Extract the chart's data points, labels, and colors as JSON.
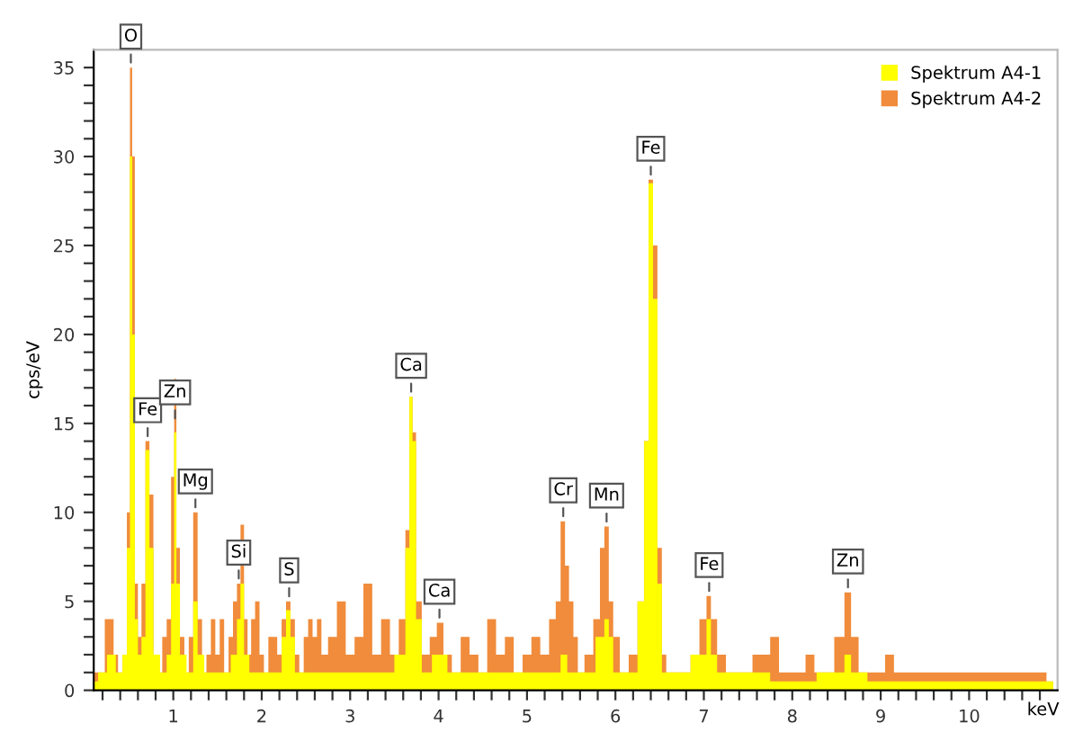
{
  "chart_data": {
    "type": "area",
    "xlabel": "keV",
    "ylabel": "cps/eV",
    "xlim": [
      0.1,
      11.0
    ],
    "ylim": [
      0,
      36
    ],
    "xticks": [
      {
        "value": 0.2,
        "label": null
      },
      {
        "value": 0.4,
        "label": null
      },
      {
        "value": 0.6,
        "label": null
      },
      {
        "value": 0.8,
        "label": null
      },
      1,
      {
        "value": 1.2,
        "label": null
      },
      {
        "value": 1.4,
        "label": null
      },
      {
        "value": 1.6,
        "label": null
      },
      {
        "value": 1.8,
        "label": null
      },
      2,
      {
        "value": 2.2,
        "label": null
      },
      {
        "value": 2.4,
        "label": null
      },
      {
        "value": 2.6,
        "label": null
      },
      {
        "value": 2.8,
        "label": null
      },
      3,
      {
        "value": 3.2,
        "label": null
      },
      {
        "value": 3.4,
        "label": null
      },
      {
        "value": 3.6,
        "label": null
      },
      {
        "value": 3.8,
        "label": null
      },
      4,
      {
        "value": 4.2,
        "label": null
      },
      {
        "value": 4.4,
        "label": null
      },
      {
        "value": 4.6,
        "label": null
      },
      {
        "value": 4.8,
        "label": null
      },
      5,
      {
        "value": 5.2,
        "label": null
      },
      {
        "value": 5.4,
        "label": null
      },
      {
        "value": 5.6,
        "label": null
      },
      {
        "value": 5.8,
        "label": null
      },
      6,
      {
        "value": 6.2,
        "label": null
      },
      {
        "value": 6.4,
        "label": null
      },
      {
        "value": 6.6,
        "label": null
      },
      {
        "value": 6.8,
        "label": null
      },
      7,
      {
        "value": 7.2,
        "label": null
      },
      {
        "value": 7.4,
        "label": null
      },
      {
        "value": 7.6,
        "label": null
      },
      {
        "value": 7.8,
        "label": null
      },
      8,
      {
        "value": 8.2,
        "label": null
      },
      {
        "value": 8.4,
        "label": null
      },
      {
        "value": 8.6,
        "label": null
      },
      {
        "value": 8.8,
        "label": null
      },
      9,
      {
        "value": 9.2,
        "label": null
      },
      {
        "value": 9.4,
        "label": null
      },
      {
        "value": 9.6,
        "label": null
      },
      {
        "value": 9.8,
        "label": null
      },
      10,
      {
        "value": 10.2,
        "label": null
      },
      {
        "value": 10.4,
        "label": null
      },
      {
        "value": 10.6,
        "label": null
      },
      {
        "value": 10.8,
        "label": null
      }
    ],
    "yticks": [
      0,
      {
        "value": 1,
        "label": null
      },
      {
        "value": 2,
        "label": null
      },
      {
        "value": 3,
        "label": null
      },
      {
        "value": 4,
        "label": null
      },
      5,
      {
        "value": 6,
        "label": null
      },
      {
        "value": 7,
        "label": null
      },
      {
        "value": 8,
        "label": null
      },
      {
        "value": 9,
        "label": null
      },
      10,
      {
        "value": 11,
        "label": null
      },
      {
        "value": 12,
        "label": null
      },
      {
        "value": 13,
        "label": null
      },
      {
        "value": 14,
        "label": null
      },
      15,
      {
        "value": 16,
        "label": null
      },
      {
        "value": 17,
        "label": null
      },
      {
        "value": 18,
        "label": null
      },
      {
        "value": 19,
        "label": null
      },
      20,
      {
        "value": 21,
        "label": null
      },
      {
        "value": 22,
        "label": null
      },
      {
        "value": 23,
        "label": null
      },
      {
        "value": 24,
        "label": null
      },
      25,
      {
        "value": 26,
        "label": null
      },
      {
        "value": 27,
        "label": null
      },
      {
        "value": 28,
        "label": null
      },
      {
        "value": 29,
        "label": null
      },
      30,
      {
        "value": 31,
        "label": null
      },
      {
        "value": 32,
        "label": null
      },
      {
        "value": 33,
        "label": null
      },
      {
        "value": 34,
        "label": null
      },
      35
    ],
    "grid": false,
    "legend": "top right",
    "series": [
      {
        "name": "Spektrum A4-1",
        "color": "#ffff00",
        "x": [
          0.1,
          0.2,
          0.3,
          0.4,
          0.45,
          0.5,
          0.52,
          0.55,
          0.58,
          0.62,
          0.66,
          0.71,
          0.75,
          0.8,
          0.9,
          0.95,
          1.0,
          1.02,
          1.05,
          1.1,
          1.2,
          1.25,
          1.3,
          1.4,
          1.5,
          1.6,
          1.7,
          1.74,
          1.78,
          1.82,
          1.9,
          2.0,
          2.1,
          2.2,
          2.25,
          2.3,
          2.35,
          2.4,
          2.6,
          2.8,
          3.0,
          3.2,
          3.4,
          3.6,
          3.65,
          3.69,
          3.72,
          3.77,
          3.85,
          4.0,
          4.2,
          4.5,
          4.8,
          5.0,
          5.2,
          5.35,
          5.41,
          5.5,
          5.7,
          5.85,
          5.9,
          5.95,
          6.0,
          6.2,
          6.3,
          6.35,
          6.4,
          6.45,
          6.5,
          6.55,
          6.7,
          7.0,
          7.06,
          7.1,
          7.2,
          7.5,
          8.0,
          8.55,
          8.63,
          8.7,
          9.0,
          10.0,
          10.95
        ],
        "values": [
          0.5,
          1,
          2,
          1,
          2,
          8,
          30,
          20,
          4,
          2,
          3,
          13.5,
          8,
          2,
          1,
          2,
          6,
          14.5,
          6,
          2,
          1,
          5,
          2,
          1,
          1,
          1,
          2,
          4,
          6,
          2,
          1,
          1,
          1,
          1,
          3,
          4.5,
          3,
          1,
          1,
          1,
          1,
          1,
          1,
          2,
          8,
          16.5,
          14,
          4,
          1,
          2,
          1,
          1,
          1,
          1,
          1,
          1,
          2,
          1,
          1,
          3,
          4,
          3,
          1,
          1,
          5,
          14,
          28.5,
          22,
          6,
          1,
          1,
          2,
          4,
          2,
          1,
          1,
          0.5,
          1,
          2,
          1,
          0.5,
          0.5,
          0.5
        ]
      },
      {
        "name": "Spektrum A4-2",
        "color": "#f08c3c",
        "x": [
          0.1,
          0.2,
          0.25,
          0.3,
          0.35,
          0.4,
          0.45,
          0.5,
          0.52,
          0.55,
          0.58,
          0.62,
          0.66,
          0.71,
          0.75,
          0.8,
          0.85,
          0.9,
          0.95,
          1.0,
          1.02,
          1.05,
          1.1,
          1.15,
          1.2,
          1.25,
          1.3,
          1.35,
          1.4,
          1.45,
          1.5,
          1.55,
          1.6,
          1.65,
          1.7,
          1.74,
          1.78,
          1.82,
          1.86,
          1.9,
          1.95,
          2.0,
          2.05,
          2.1,
          2.15,
          2.2,
          2.25,
          2.3,
          2.35,
          2.4,
          2.45,
          2.5,
          2.55,
          2.6,
          2.65,
          2.7,
          2.8,
          2.9,
          3.0,
          3.1,
          3.2,
          3.3,
          3.4,
          3.5,
          3.6,
          3.65,
          3.69,
          3.72,
          3.77,
          3.85,
          3.95,
          4.01,
          4.1,
          4.2,
          4.3,
          4.4,
          4.5,
          4.6,
          4.7,
          4.8,
          4.9,
          5.0,
          5.1,
          5.2,
          5.3,
          5.35,
          5.41,
          5.45,
          5.5,
          5.55,
          5.6,
          5.7,
          5.8,
          5.85,
          5.9,
          5.95,
          6.0,
          6.1,
          6.2,
          6.3,
          6.35,
          6.4,
          6.45,
          6.5,
          6.55,
          6.6,
          6.7,
          6.8,
          6.9,
          7.0,
          7.06,
          7.1,
          7.2,
          7.3,
          7.5,
          7.6,
          7.7,
          7.8,
          7.9,
          8.0,
          8.1,
          8.2,
          8.3,
          8.4,
          8.55,
          8.63,
          8.7,
          8.8,
          8.9,
          9.0,
          9.1,
          9.2,
          9.4,
          9.6,
          9.8,
          10.0,
          10.2,
          10.4,
          10.6,
          10.8,
          10.95
        ],
        "values": [
          1,
          1,
          4,
          4,
          2,
          1,
          2,
          10,
          35,
          30,
          6,
          3,
          6,
          14,
          11,
          2,
          1,
          3,
          4,
          12,
          17.5,
          8,
          3,
          1,
          3,
          10,
          4,
          1,
          2,
          4,
          2,
          4,
          1,
          3,
          5,
          6,
          9.3,
          4,
          2,
          4,
          5,
          2,
          1,
          3,
          3,
          2,
          4,
          5,
          4,
          2,
          1,
          3,
          4,
          3,
          4,
          2,
          3,
          5,
          2,
          3,
          6,
          2,
          4,
          2,
          4,
          9,
          16.5,
          14.5,
          5,
          2,
          3,
          3.8,
          2,
          1,
          3,
          2,
          1,
          4,
          2,
          3,
          1,
          2,
          3,
          2,
          4,
          5,
          9.5,
          7,
          5,
          3,
          1,
          2,
          4,
          8,
          9.2,
          5,
          3,
          1,
          2,
          5,
          14,
          28.7,
          25,
          8,
          2,
          1,
          1,
          1,
          2,
          4,
          5.3,
          4,
          2,
          1,
          1,
          2,
          2,
          3,
          1,
          1,
          1,
          2,
          1,
          1,
          3,
          5.5,
          3,
          1,
          1,
          1,
          2,
          1,
          1,
          1,
          1,
          1,
          1,
          1,
          1,
          1,
          0.5
        ]
      }
    ],
    "annotations": [
      {
        "text": "O",
        "x": 0.52,
        "y": 35
      },
      {
        "text": "Fe",
        "x": 0.71,
        "y": 14
      },
      {
        "text": "Zn",
        "x": 1.02,
        "y": 15
      },
      {
        "text": "Mg",
        "x": 1.25,
        "y": 10
      },
      {
        "text": "Si",
        "x": 1.74,
        "y": 6
      },
      {
        "text": "S",
        "x": 2.31,
        "y": 5
      },
      {
        "text": "Ca",
        "x": 3.69,
        "y": 16.5
      },
      {
        "text": "Ca",
        "x": 4.01,
        "y": 3.8
      },
      {
        "text": "Cr",
        "x": 5.41,
        "y": 9.5
      },
      {
        "text": "Mn",
        "x": 5.9,
        "y": 9.2
      },
      {
        "text": "Fe",
        "x": 6.4,
        "y": 28.7
      },
      {
        "text": "Fe",
        "x": 7.06,
        "y": 5.3
      },
      {
        "text": "Zn",
        "x": 8.63,
        "y": 5.5
      }
    ]
  }
}
